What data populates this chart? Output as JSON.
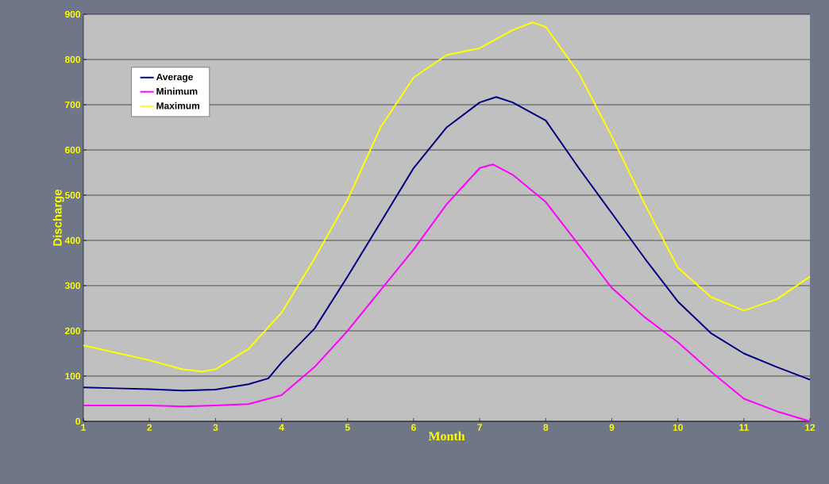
{
  "chart_data": {
    "type": "line",
    "xlabel": "Month",
    "ylabel": "Discharge",
    "xlim": [
      1,
      12
    ],
    "ylim": [
      0,
      900
    ],
    "xticks": [
      1,
      2,
      3,
      4,
      5,
      6,
      7,
      8,
      9,
      10,
      11,
      12
    ],
    "yticks": [
      0,
      100,
      200,
      300,
      400,
      500,
      600,
      700,
      800,
      900
    ],
    "grid": "y",
    "legend": "top left",
    "marker": "none",
    "line_style": "solid",
    "series": [
      {
        "name": "Average",
        "color": "#000080",
        "x": [
          1,
          1.5,
          2,
          2.5,
          3,
          3.5,
          3.8,
          4,
          4.5,
          5,
          5.5,
          6,
          6.5,
          7,
          7.25,
          7.5,
          8,
          8.5,
          9,
          9.5,
          10,
          10.5,
          11,
          11.5,
          12
        ],
        "values": [
          75,
          73,
          71,
          68,
          70,
          82,
          95,
          130,
          205,
          320,
          440,
          560,
          650,
          705,
          717,
          705,
          665,
          560,
          460,
          360,
          265,
          195,
          150,
          120,
          92
        ]
      },
      {
        "name": "Minimum",
        "color": "#ff00ff",
        "x": [
          1,
          2,
          2.5,
          3,
          3.5,
          4,
          4.5,
          5,
          5.5,
          6,
          6.5,
          7,
          7.2,
          7.5,
          8,
          8.5,
          9,
          9.5,
          10,
          10.5,
          11,
          11.5,
          12
        ],
        "values": [
          35,
          35,
          33,
          35,
          38,
          58,
          120,
          200,
          290,
          380,
          480,
          560,
          568,
          545,
          485,
          390,
          295,
          230,
          175,
          110,
          50,
          22,
          0
        ]
      },
      {
        "name": "Maximum",
        "color": "#ffff00",
        "x": [
          1,
          2,
          2.5,
          2.8,
          3,
          3.5,
          4,
          4.5,
          5,
          5.5,
          6,
          6.5,
          7,
          7.5,
          7.8,
          8,
          8.5,
          9,
          9.5,
          10,
          10.5,
          11,
          11.5,
          12
        ],
        "values": [
          168,
          135,
          115,
          110,
          115,
          160,
          240,
          360,
          490,
          650,
          760,
          810,
          825,
          865,
          882,
          872,
          770,
          630,
          480,
          340,
          275,
          245,
          270,
          320
        ]
      }
    ]
  }
}
